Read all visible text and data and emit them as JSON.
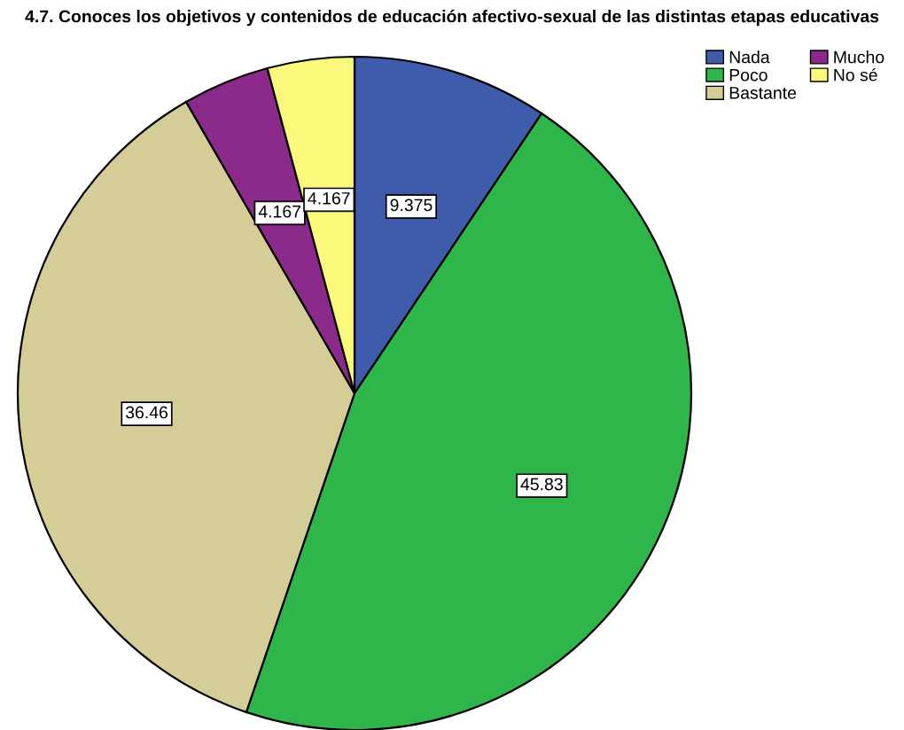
{
  "chart_data": {
    "type": "pie",
    "title": "4.7. Conoces los objetivos y contenidos de educación afectivo-sexual de las distintas etapas educativas",
    "categories": [
      "Nada",
      "Poco",
      "Bastante",
      "Mucho",
      "No sé"
    ],
    "values": [
      9.375,
      45.83,
      36.46,
      4.167,
      4.167
    ],
    "colors": [
      "#3f5bab",
      "#2fb64a",
      "#d5cd98",
      "#8b2a8a",
      "#fbf97c"
    ],
    "data_labels": true,
    "legend": "top right"
  }
}
